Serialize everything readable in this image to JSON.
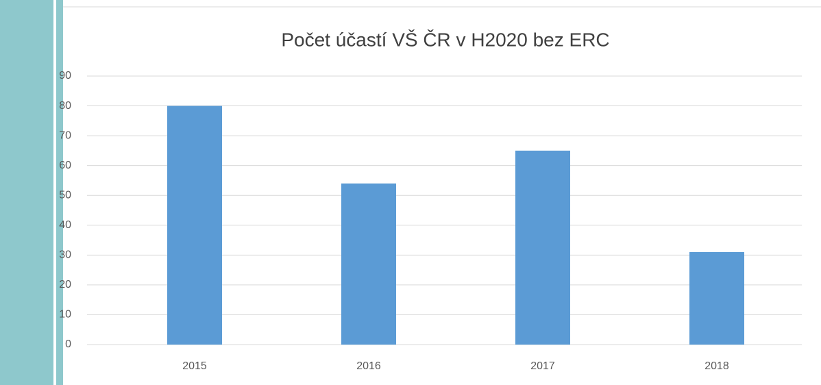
{
  "chart_data": {
    "type": "bar",
    "title": "Počet účastí VŠ ČR v H2020 bez ERC",
    "categories": [
      "2015",
      "2016",
      "2017",
      "2018"
    ],
    "values": [
      80,
      54,
      65,
      31
    ],
    "color": "#5b9bd5",
    "ylim": [
      0,
      90
    ],
    "yticks": [
      0,
      10,
      20,
      30,
      40,
      50,
      60,
      70,
      80,
      90
    ],
    "grid": true
  }
}
